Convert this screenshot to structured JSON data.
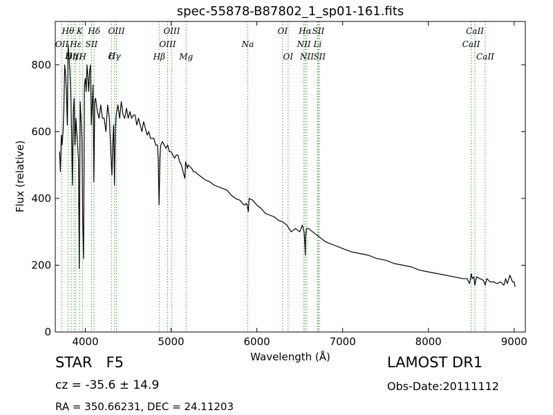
{
  "footer": {
    "object_type": "STAR",
    "subclass": "F5",
    "survey": "LAMOST DR1",
    "cz_text": "cz = -35.6 ± 14.9",
    "obs_date": "Obs-Date:20111112",
    "radec": "RA = 350.66231, DEC = 24.11203"
  },
  "chart_data": {
    "type": "line",
    "title": "spec-55878-B87802_1_sp01-161.fits",
    "xlabel": "Wavelength (Å)",
    "ylabel": "Flux (relative)",
    "xlim": [
      3650,
      9130
    ],
    "ylim": [
      0,
      930
    ],
    "xticks": [
      4000,
      5000,
      6000,
      7000,
      8000,
      9000
    ],
    "yticks": [
      0,
      200,
      400,
      600,
      800
    ],
    "grid": false,
    "line_color": "#000000",
    "marker_color": "#2ca02c",
    "spectral_lines": [
      {
        "label": "OII",
        "x": 3727,
        "row": 2
      },
      {
        "label": "Hθ",
        "x": 3798,
        "row": 1
      },
      {
        "label": "Hη",
        "x": 3835,
        "row": 3
      },
      {
        "label": "OIII",
        "x": 3869,
        "row": 4
      },
      {
        "label": "Hε",
        "x": 3889,
        "row": 2
      },
      {
        "label": "K",
        "x": 3934,
        "row": 1
      },
      {
        "label": "H",
        "x": 3969,
        "row": 4
      },
      {
        "label": "SII",
        "x": 4072,
        "row": 2
      },
      {
        "label": "Hδ",
        "x": 4102,
        "row": 1
      },
      {
        "label": "G",
        "x": 4305,
        "row": 4
      },
      {
        "label": "Hγ",
        "x": 4341,
        "row": 3
      },
      {
        "label": "OIII",
        "x": 4363,
        "row": 1
      },
      {
        "label": "Hβ",
        "x": 4861,
        "row": 4
      },
      {
        "label": "OIII",
        "x": 4959,
        "row": 2
      },
      {
        "label": "OIII",
        "x": 5007,
        "row": 1
      },
      {
        "label": "Mg",
        "x": 5175,
        "row": 4
      },
      {
        "label": "Na",
        "x": 5894,
        "row": 2
      },
      {
        "label": "OI",
        "x": 6300,
        "row": 1
      },
      {
        "label": "OI",
        "x": 6364,
        "row": 4
      },
      {
        "label": "NII",
        "x": 6548,
        "row": 2
      },
      {
        "label": "Hα",
        "x": 6563,
        "row": 1
      },
      {
        "label": "NII",
        "x": 6583,
        "row": 4
      },
      {
        "label": "Li",
        "x": 6708,
        "row": 2
      },
      {
        "label": "SII",
        "x": 6716,
        "row": 1
      },
      {
        "label": "SII",
        "x": 6731,
        "row": 4
      },
      {
        "label": "CaII",
        "x": 8498,
        "row": 2
      },
      {
        "label": "CaII",
        "x": 8542,
        "row": 1
      },
      {
        "label": "CaII",
        "x": 8662,
        "row": 4
      }
    ],
    "x": [
      3700,
      3710,
      3720,
      3730,
      3740,
      3750,
      3760,
      3770,
      3780,
      3790,
      3800,
      3810,
      3820,
      3830,
      3840,
      3850,
      3860,
      3870,
      3880,
      3890,
      3900,
      3910,
      3920,
      3930,
      3940,
      3950,
      3960,
      3970,
      3980,
      3990,
      4000,
      4010,
      4020,
      4030,
      4040,
      4050,
      4060,
      4070,
      4080,
      4090,
      4100,
      4110,
      4120,
      4140,
      4160,
      4180,
      4200,
      4220,
      4240,
      4260,
      4280,
      4300,
      4310,
      4320,
      4330,
      4340,
      4350,
      4360,
      4380,
      4400,
      4420,
      4440,
      4460,
      4480,
      4500,
      4520,
      4540,
      4560,
      4580,
      4600,
      4620,
      4640,
      4660,
      4680,
      4700,
      4720,
      4740,
      4760,
      4780,
      4800,
      4820,
      4840,
      4850,
      4860,
      4870,
      4880,
      4900,
      4920,
      4940,
      4960,
      4980,
      5000,
      5020,
      5040,
      5060,
      5080,
      5100,
      5120,
      5140,
      5160,
      5170,
      5180,
      5190,
      5200,
      5220,
      5240,
      5260,
      5280,
      5300,
      5350,
      5400,
      5450,
      5500,
      5550,
      5600,
      5650,
      5700,
      5750,
      5800,
      5850,
      5880,
      5890,
      5900,
      5910,
      5950,
      6000,
      6050,
      6100,
      6150,
      6200,
      6250,
      6300,
      6350,
      6400,
      6450,
      6500,
      6530,
      6550,
      6560,
      6565,
      6570,
      6580,
      6600,
      6650,
      6700,
      6750,
      6800,
      6850,
      6900,
      6950,
      7000,
      7100,
      7200,
      7300,
      7400,
      7500,
      7600,
      7700,
      7800,
      7900,
      8000,
      8100,
      8200,
      8300,
      8400,
      8450,
      8480,
      8500,
      8510,
      8530,
      8542,
      8560,
      8600,
      8640,
      8662,
      8680,
      8720,
      8760,
      8800,
      8840,
      8880,
      8900,
      8920,
      8950,
      8980,
      9000,
      9010
    ],
    "y": [
      540,
      480,
      590,
      560,
      600,
      670,
      800,
      770,
      720,
      620,
      860,
      820,
      780,
      720,
      600,
      440,
      660,
      700,
      560,
      640,
      600,
      560,
      520,
      190,
      690,
      640,
      580,
      330,
      220,
      740,
      760,
      720,
      800,
      760,
      720,
      780,
      800,
      620,
      680,
      740,
      450,
      690,
      700,
      660,
      640,
      680,
      640,
      640,
      600,
      680,
      640,
      520,
      470,
      560,
      620,
      440,
      610,
      650,
      680,
      640,
      690,
      650,
      640,
      670,
      640,
      660,
      640,
      650,
      650,
      620,
      640,
      620,
      600,
      630,
      610,
      590,
      600,
      580,
      580,
      580,
      560,
      560,
      520,
      380,
      520,
      560,
      570,
      560,
      550,
      560,
      540,
      540,
      530,
      520,
      530,
      530,
      510,
      500,
      480,
      460,
      510,
      500,
      490,
      500,
      495,
      490,
      480,
      480,
      475,
      465,
      455,
      450,
      440,
      435,
      430,
      425,
      410,
      400,
      395,
      380,
      385,
      375,
      360,
      400,
      395,
      380,
      370,
      355,
      350,
      345,
      335,
      330,
      320,
      300,
      310,
      300,
      320,
      300,
      260,
      230,
      290,
      310,
      310,
      300,
      290,
      280,
      270,
      265,
      260,
      255,
      250,
      240,
      235,
      230,
      220,
      215,
      205,
      200,
      195,
      185,
      180,
      175,
      170,
      165,
      160,
      160,
      145,
      175,
      160,
      165,
      140,
      165,
      160,
      155,
      140,
      160,
      150,
      150,
      145,
      150,
      140,
      160,
      145,
      170,
      150,
      150,
      135
    ]
  }
}
